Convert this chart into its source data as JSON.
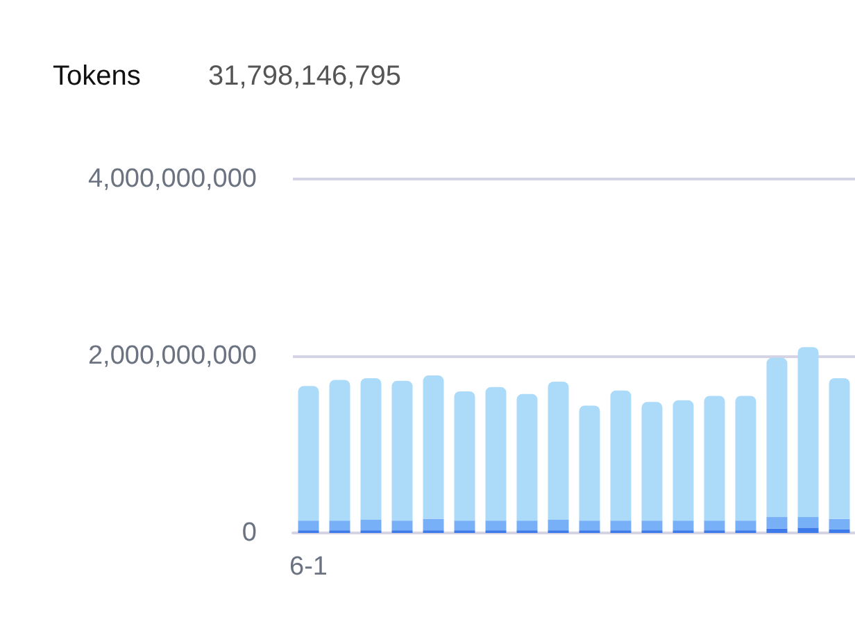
{
  "chart_data": {
    "type": "bar",
    "title": "Tokens",
    "subtitle": "31,798,146,795",
    "stacked": true,
    "categories": [
      "6-1",
      null,
      null,
      null,
      null,
      null,
      null,
      null,
      null,
      null,
      null,
      null,
      null,
      null,
      null,
      null,
      null,
      null
    ],
    "series": [
      {
        "color": "#3c7be9",
        "values": [
          30000000,
          30000000,
          30000000,
          30000000,
          30000000,
          30000000,
          30000000,
          30000000,
          30000000,
          30000000,
          30000000,
          30000000,
          30000000,
          30000000,
          30000000,
          50000000,
          60000000,
          40000000
        ]
      },
      {
        "color": "#78b0f8",
        "values": [
          110000000,
          110000000,
          120000000,
          110000000,
          130000000,
          110000000,
          110000000,
          110000000,
          120000000,
          110000000,
          110000000,
          110000000,
          110000000,
          110000000,
          110000000,
          130000000,
          120000000,
          120000000
        ]
      },
      {
        "color": "#acdbf9",
        "values": [
          1520000000,
          1590000000,
          1600000000,
          1580000000,
          1620000000,
          1460000000,
          1510000000,
          1430000000,
          1560000000,
          1300000000,
          1470000000,
          1340000000,
          1360000000,
          1410000000,
          1410000000,
          1800000000,
          1920000000,
          1590000000
        ]
      }
    ],
    "ylim": [
      0,
      4000000000
    ],
    "yticks": [
      0,
      {
        "value": 2000000000,
        "label": "2,000,000,000"
      },
      {
        "value": 4000000000,
        "label": "4,000,000,000"
      }
    ],
    "grid": "y"
  }
}
